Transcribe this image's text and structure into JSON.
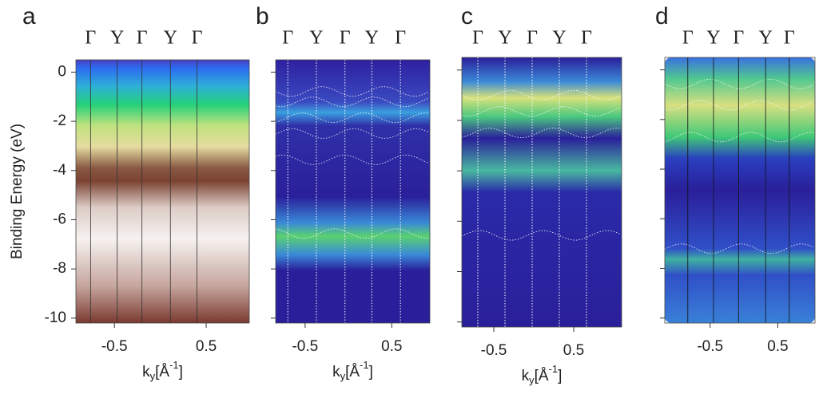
{
  "chart_data": [
    {
      "type": "heatmap",
      "label": "a",
      "ylabel": "Binding Energy (eV)",
      "xlabel": {
        "base": "k",
        "sub": "y",
        "mid": "[Å",
        "sup": "-1",
        "end": "]"
      },
      "symmetry_points": [
        {
          "value": -0.76,
          "label": "Γ"
        },
        {
          "value": -0.47,
          "label": "Υ"
        },
        {
          "value": -0.2,
          "label": "Γ"
        },
        {
          "value": 0.11,
          "label": "Υ"
        },
        {
          "value": 0.4,
          "label": "Γ"
        }
      ],
      "xlim": [
        -0.92,
        0.97
      ],
      "xticks": [
        -0.5,
        0.5
      ],
      "ylim": [
        -10.2,
        0.5
      ],
      "yticks": [
        0,
        -2,
        -4,
        -6,
        -8,
        -10
      ]
    },
    {
      "type": "heatmap",
      "label": "b",
      "xlabel": {
        "base": "k",
        "sub": "y",
        "mid": "[Å",
        "sup": "-1",
        "end": "]"
      },
      "symmetry_points": [
        {
          "value": -0.7,
          "label": "Γ"
        },
        {
          "value": -0.37,
          "label": "Υ"
        },
        {
          "value": -0.04,
          "label": "Γ"
        },
        {
          "value": 0.27,
          "label": "Υ"
        },
        {
          "value": 0.6,
          "label": "Γ"
        }
      ],
      "xlim": [
        -0.84,
        0.94
      ],
      "xticks": [
        -0.5,
        0.5
      ],
      "ylim": [
        -10.2,
        0.5
      ],
      "yticks": [
        0,
        -2,
        -4,
        -6,
        -8,
        -10
      ]
    },
    {
      "type": "heatmap",
      "label": "c",
      "xlabel": {
        "base": "k",
        "sub": "y",
        "mid": "[Å",
        "sup": "-1",
        "end": "]"
      },
      "symmetry_points": [
        {
          "value": -0.7,
          "label": "Γ"
        },
        {
          "value": -0.36,
          "label": "Υ"
        },
        {
          "value": -0.02,
          "label": "Γ"
        },
        {
          "value": 0.32,
          "label": "Υ"
        },
        {
          "value": 0.66,
          "label": "Γ"
        }
      ],
      "xlim": [
        -0.9,
        1.1
      ],
      "xticks": [
        -0.5,
        0.5
      ],
      "ylim": [
        -10.2,
        0.5
      ],
      "yticks": [
        0,
        -2,
        -4,
        -6,
        -8,
        -10
      ]
    },
    {
      "type": "heatmap",
      "label": "d",
      "symmetry_points": [
        {
          "value": -0.83,
          "label": "Γ"
        },
        {
          "value": -0.45,
          "label": "Υ"
        },
        {
          "value": -0.08,
          "label": "Γ"
        },
        {
          "value": 0.32,
          "label": "Υ"
        },
        {
          "value": 0.67,
          "label": "Γ"
        }
      ],
      "xlim": [
        -1.17,
        1.05
      ],
      "xticks": [
        -0.5,
        0.5
      ],
      "ylim": [
        -10.2,
        0.5
      ],
      "yticks": [
        0,
        -2,
        -4,
        -6,
        -8,
        -10
      ]
    }
  ]
}
